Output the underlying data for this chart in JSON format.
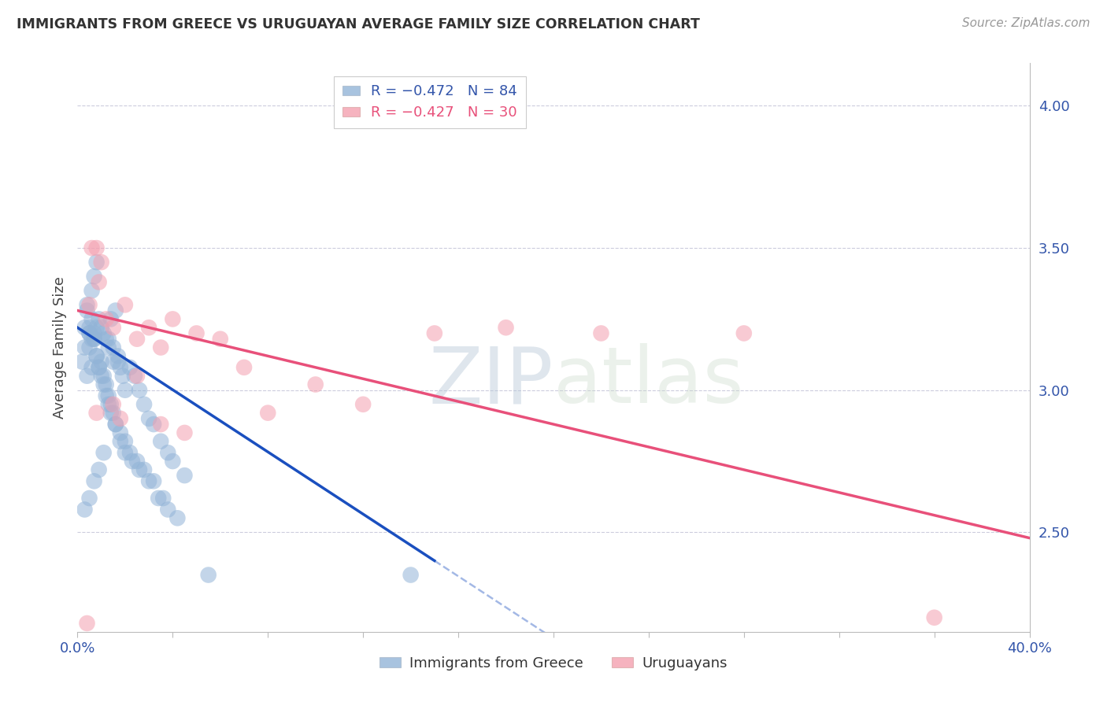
{
  "title": "IMMIGRANTS FROM GREECE VS URUGUAYAN AVERAGE FAMILY SIZE CORRELATION CHART",
  "source": "Source: ZipAtlas.com",
  "ylabel": "Average Family Size",
  "right_yticks": [
    2.5,
    3.0,
    3.5,
    4.0
  ],
  "legend_blue_r": "R = −0.472",
  "legend_blue_n": "N = 84",
  "legend_pink_r": "R = −0.427",
  "legend_pink_n": "N = 30",
  "blue_color": "#92B4D7",
  "pink_color": "#F4A0B0",
  "blue_line_color": "#1A4FBF",
  "pink_line_color": "#E8507A",
  "watermark_zip": "ZIP",
  "watermark_atlas": "atlas",
  "blue_scatter_x": [
    0.5,
    0.8,
    1.0,
    1.2,
    1.3,
    1.4,
    1.5,
    1.6,
    1.7,
    1.8,
    0.4,
    0.6,
    0.7,
    0.9,
    1.1,
    1.3,
    1.5,
    1.7,
    1.9,
    2.0,
    2.2,
    2.4,
    2.6,
    2.8,
    3.0,
    3.2,
    3.5,
    3.8,
    4.0,
    4.5,
    0.3,
    0.5,
    0.6,
    0.7,
    0.8,
    0.9,
    1.0,
    1.1,
    1.2,
    1.3,
    1.4,
    1.5,
    1.6,
    1.8,
    2.0,
    2.2,
    2.5,
    2.8,
    3.2,
    3.6,
    0.4,
    0.5,
    0.6,
    0.7,
    0.8,
    0.9,
    1.0,
    1.1,
    1.2,
    1.3,
    1.4,
    1.6,
    1.8,
    2.0,
    2.3,
    2.6,
    3.0,
    3.4,
    3.8,
    4.2,
    0.2,
    0.3,
    0.4,
    0.5,
    0.6,
    0.7,
    0.8,
    5.5,
    14.0,
    0.3,
    0.5,
    0.7,
    0.9,
    1.1
  ],
  "blue_scatter_y": [
    3.2,
    3.45,
    3.22,
    3.18,
    3.15,
    3.25,
    3.1,
    3.28,
    3.12,
    3.08,
    3.3,
    3.35,
    3.4,
    3.25,
    3.2,
    3.18,
    3.15,
    3.1,
    3.05,
    3.0,
    3.08,
    3.05,
    3.0,
    2.95,
    2.9,
    2.88,
    2.82,
    2.78,
    2.75,
    2.7,
    3.22,
    3.15,
    3.18,
    3.2,
    3.12,
    3.08,
    3.1,
    3.05,
    3.02,
    2.98,
    2.95,
    2.92,
    2.88,
    2.85,
    2.82,
    2.78,
    2.75,
    2.72,
    2.68,
    2.62,
    3.28,
    3.22,
    3.25,
    3.18,
    3.12,
    3.08,
    3.05,
    3.02,
    2.98,
    2.95,
    2.92,
    2.88,
    2.82,
    2.78,
    2.75,
    2.72,
    2.68,
    2.62,
    2.58,
    2.55,
    3.1,
    3.15,
    3.05,
    3.2,
    3.08,
    3.18,
    3.22,
    2.35,
    2.35,
    2.58,
    2.62,
    2.68,
    2.72,
    2.78
  ],
  "pink_scatter_x": [
    0.5,
    0.8,
    1.0,
    1.5,
    2.0,
    2.5,
    3.0,
    3.5,
    4.0,
    5.0,
    6.0,
    7.0,
    8.0,
    10.0,
    12.0,
    15.0,
    18.0,
    22.0,
    28.0,
    36.0,
    0.6,
    0.9,
    1.2,
    1.8,
    2.5,
    3.5,
    4.5,
    1.5,
    0.8,
    0.4
  ],
  "pink_scatter_y": [
    3.3,
    3.5,
    3.45,
    3.22,
    3.3,
    3.18,
    3.22,
    3.15,
    3.25,
    3.2,
    3.18,
    3.08,
    2.92,
    3.02,
    2.95,
    3.2,
    3.22,
    3.2,
    3.2,
    2.2,
    3.5,
    3.38,
    3.25,
    2.9,
    3.05,
    2.88,
    2.85,
    2.95,
    2.92,
    2.18
  ],
  "xlim": [
    0.0,
    40.0
  ],
  "ylim": [
    2.15,
    4.15
  ],
  "blue_line_x0": 0.0,
  "blue_line_x1": 15.0,
  "blue_line_y0": 3.22,
  "blue_line_y1": 2.4,
  "blue_dash_x0": 15.0,
  "blue_dash_x1": 40.0,
  "pink_line_x0": 0.0,
  "pink_line_x1": 40.0,
  "pink_line_y0": 3.28,
  "pink_line_y1": 2.48,
  "figsize": [
    14.06,
    8.92
  ],
  "dpi": 100
}
